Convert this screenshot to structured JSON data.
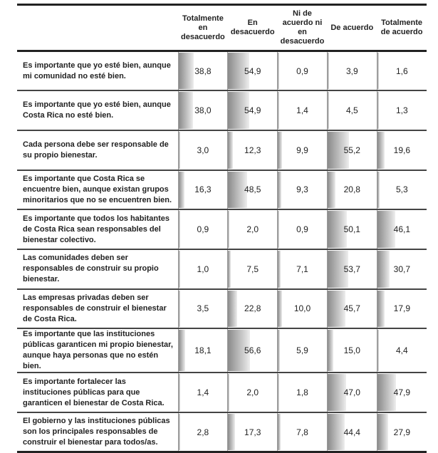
{
  "columns": [
    "Totalmente en desacuerdo",
    "En desacuerdo",
    "Ni de acuerdo ni en desacuerdo",
    "De acuerdo",
    "Totalmente de acuerdo"
  ],
  "rows": [
    {
      "label": "Es importante que yo esté bien, aunque mi comunidad no esté bien.",
      "values": [
        "38,8",
        "54,9",
        "0,9",
        "3,9",
        "1,6"
      ]
    },
    {
      "label": "Es importante que yo esté bien, aunque Costa Rica no esté bien.",
      "values": [
        "38,0",
        "54,9",
        "1,4",
        "4,5",
        "1,3"
      ]
    },
    {
      "label": "Cada persona debe ser responsable de su propio bienestar.",
      "values": [
        "3,0",
        "12,3",
        "9,9",
        "55,2",
        "19,6"
      ]
    },
    {
      "label": "Es importante que Costa Rica se encuentre bien, aunque existan grupos minoritarios que no se encuentren bien.",
      "values": [
        "16,3",
        "48,5",
        "9,3",
        "20,8",
        "5,3"
      ]
    },
    {
      "label": "Es importante que todos los habitantes de Costa Rica sean responsables del bienestar colectivo.",
      "values": [
        "0,9",
        "2,0",
        "0,9",
        "50,1",
        "46,1"
      ]
    },
    {
      "label": "Las comunidades deben ser responsables de construir su propio bienestar.",
      "values": [
        "1,0",
        "7,5",
        "7,1",
        "53,7",
        "30,7"
      ]
    },
    {
      "label": "Las empresas privadas deben ser responsables de construir el bienestar de Costa Rica.",
      "values": [
        "3,5",
        "22,8",
        "10,0",
        "45,7",
        "17,9"
      ]
    },
    {
      "label": "Es importante que las instituciones públicas garanticen mi propio bienestar, aunque haya personas que no estén bien.",
      "values": [
        "18,1",
        "56,6",
        "5,9",
        "15,0",
        "4,4"
      ]
    },
    {
      "label": "Es importante fortalecer las instituciones públicas para que garanticen el bienestar de Costa Rica.",
      "values": [
        "1,4",
        "2,0",
        "1,8",
        "47,0",
        "47,9"
      ]
    },
    {
      "label": "El gobierno y las instituciones públicas son los principales responsables de construir el bienestar para todos/as.",
      "values": [
        "2,8",
        "17,3",
        "7,8",
        "44,4",
        "27,9"
      ]
    }
  ]
}
